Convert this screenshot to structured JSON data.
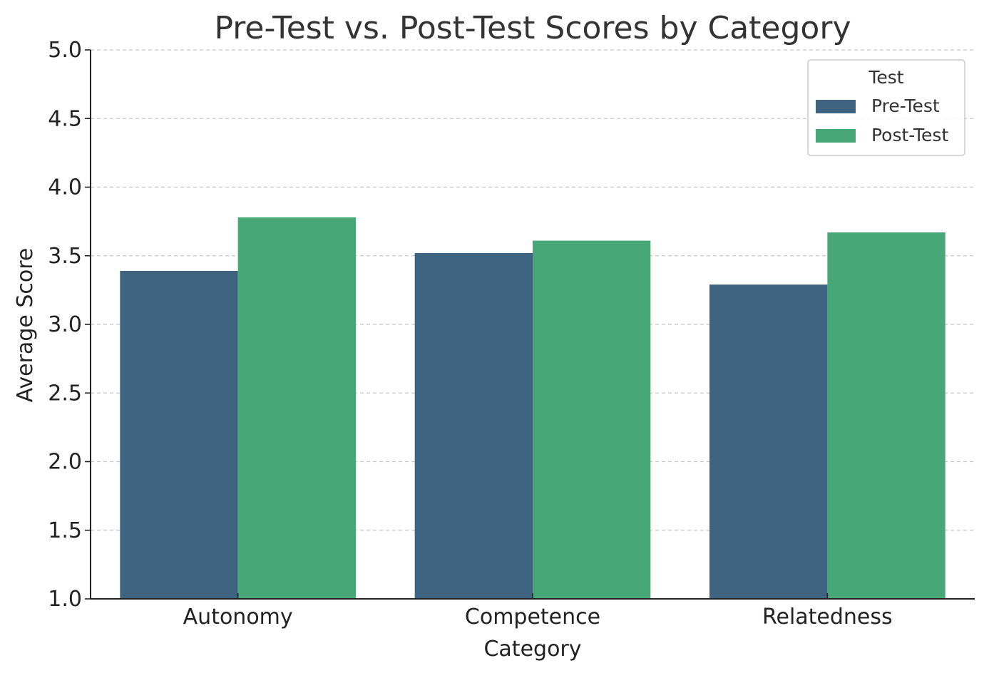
{
  "chart_data": {
    "type": "bar",
    "title": "Pre-Test vs. Post-Test Scores by Category",
    "xlabel": "Category",
    "ylabel": "Average Score",
    "categories": [
      "Autonomy",
      "Competence",
      "Relatedness"
    ],
    "series": [
      {
        "name": "Pre-Test",
        "values": [
          3.39,
          3.52,
          3.29
        ],
        "color": "#3e6482"
      },
      {
        "name": "Post-Test",
        "values": [
          3.78,
          3.61,
          3.67
        ],
        "color": "#47a777"
      }
    ],
    "ylim": [
      1.0,
      5.0
    ],
    "yticks": [
      "1.0",
      "1.5",
      "2.0",
      "2.5",
      "3.0",
      "3.5",
      "4.0",
      "4.5",
      "5.0"
    ],
    "grid": "y-dashed",
    "legend": {
      "title": "Test",
      "position": "top-right"
    }
  }
}
